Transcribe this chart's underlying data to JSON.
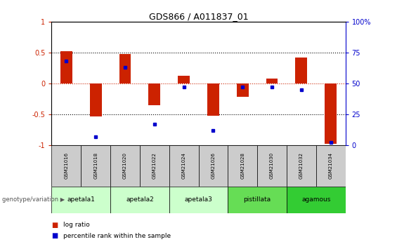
{
  "title": "GDS866 / A011837_01",
  "samples": [
    "GSM21016",
    "GSM21018",
    "GSM21020",
    "GSM21022",
    "GSM21024",
    "GSM21026",
    "GSM21028",
    "GSM21030",
    "GSM21032",
    "GSM21034"
  ],
  "log_ratio": [
    0.52,
    -0.53,
    0.48,
    -0.35,
    0.12,
    -0.52,
    -0.22,
    0.08,
    0.42,
    -0.98
  ],
  "percentile_rank": [
    68,
    7,
    63,
    17,
    47,
    12,
    47,
    47,
    45,
    2
  ],
  "groups": [
    {
      "label": "apetala1",
      "start": 0,
      "end": 2,
      "color": "#ccffcc"
    },
    {
      "label": "apetala2",
      "start": 2,
      "end": 4,
      "color": "#ccffcc"
    },
    {
      "label": "apetala3",
      "start": 4,
      "end": 6,
      "color": "#ccffcc"
    },
    {
      "label": "pistillata",
      "start": 6,
      "end": 8,
      "color": "#66dd55"
    },
    {
      "label": "agamous",
      "start": 8,
      "end": 10,
      "color": "#33cc33"
    }
  ],
  "ylim": [
    -1,
    1
  ],
  "yticks_left": [
    -1,
    -0.5,
    0,
    0.5,
    1
  ],
  "yticks_right": [
    0,
    25,
    50,
    75,
    100
  ],
  "bar_color": "#cc2200",
  "dot_color": "#0000cc",
  "zero_line_color": "#cc2200",
  "bg_color": "white",
  "sample_bg": "#cccccc"
}
